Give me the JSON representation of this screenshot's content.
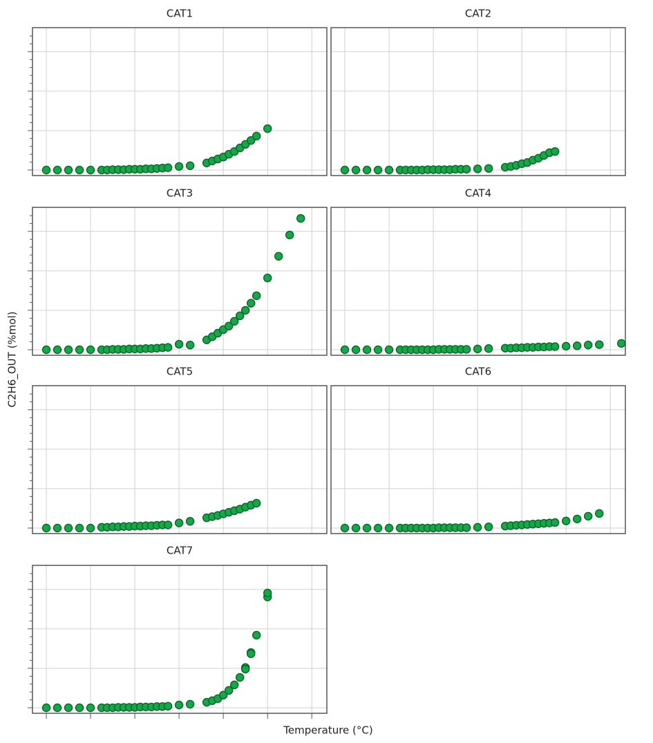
{
  "x_label": "Temperature (°C)",
  "y_label": "C2H6_OUT (%mol)",
  "chart_data": [
    {
      "type": "scatter",
      "title": "CAT1",
      "color": "#19a64a",
      "xlim": [
        -0.3125,
        6.34
      ],
      "ylim": [
        -0.14,
        3.61
      ],
      "xticks": [
        0,
        1,
        2,
        3,
        4,
        5,
        6
      ],
      "yticks": [
        0,
        1,
        2,
        3
      ],
      "yticks_minor": [
        0.2,
        0.4,
        0.6,
        0.8,
        1.2,
        1.4,
        1.6,
        1.8,
        2.2,
        2.4,
        2.6,
        2.8,
        3.2,
        3.4
      ],
      "grid": true,
      "x": [
        0,
        0.25,
        0.5,
        0.75,
        1,
        1.25,
        1.375,
        1.5,
        1.625,
        1.75,
        1.875,
        2,
        2.125,
        2.25,
        2.375,
        2.5,
        2.625,
        2.75,
        3,
        3.25,
        3.625,
        3.75,
        3.875,
        4,
        4.125,
        4.25,
        4.375,
        4.5,
        4.625,
        4.75,
        5
      ],
      "values": [
        0,
        0,
        0,
        0,
        0,
        0,
        0,
        0.01,
        0.01,
        0.01,
        0.02,
        0.02,
        0.02,
        0.03,
        0.03,
        0.04,
        0.05,
        0.06,
        0.09,
        0.11,
        0.18,
        0.23,
        0.28,
        0.33,
        0.4,
        0.47,
        0.56,
        0.65,
        0.75,
        0.86,
        1.05
      ]
    },
    {
      "type": "scatter",
      "title": "CAT2",
      "color": "#19a64a",
      "xlim": [
        -0.3125,
        6.34
      ],
      "ylim": [
        -0.14,
        3.61
      ],
      "xticks": [
        0,
        1,
        2,
        3,
        4,
        5,
        6
      ],
      "yticks": [
        0,
        1,
        2,
        3
      ],
      "grid": true,
      "x": [
        0,
        0.25,
        0.5,
        0.75,
        1,
        1.25,
        1.375,
        1.5,
        1.625,
        1.75,
        1.875,
        2,
        2.125,
        2.25,
        2.375,
        2.5,
        2.625,
        2.75,
        3,
        3.25,
        3.625,
        3.75,
        3.875,
        4,
        4.125,
        4.25,
        4.375,
        4.5,
        4.625,
        4.75
      ],
      "values": [
        0,
        0,
        0,
        0,
        0,
        0,
        0,
        0,
        0,
        0,
        0.01,
        0.01,
        0.01,
        0.01,
        0.01,
        0.02,
        0.02,
        0.02,
        0.03,
        0.04,
        0.07,
        0.09,
        0.12,
        0.16,
        0.19,
        0.25,
        0.3,
        0.37,
        0.44,
        0.47
      ]
    },
    {
      "type": "scatter",
      "title": "CAT3",
      "color": "#19a64a",
      "xlim": [
        -0.3125,
        6.34
      ],
      "ylim": [
        -0.14,
        3.61
      ],
      "xticks": [
        0,
        1,
        2,
        3,
        4,
        5,
        6
      ],
      "yticks": [
        0,
        1,
        2,
        3
      ],
      "yticks_minor": [
        0.2,
        0.4,
        0.6,
        0.8,
        1.2,
        1.4,
        1.6,
        1.8,
        2.2,
        2.4,
        2.6,
        2.8,
        3.2,
        3.4
      ],
      "grid": true,
      "x": [
        0,
        0.25,
        0.5,
        0.75,
        1,
        1.25,
        1.375,
        1.5,
        1.625,
        1.75,
        1.875,
        2,
        2.125,
        2.25,
        2.375,
        2.5,
        2.625,
        2.75,
        3,
        3.25,
        3.625,
        3.75,
        3.875,
        4,
        4.125,
        4.25,
        4.375,
        4.5,
        4.625,
        4.75,
        5,
        5.25,
        5.5,
        5.75
      ],
      "values": [
        0,
        0,
        0,
        0,
        0,
        0,
        0,
        0.01,
        0.01,
        0.01,
        0.02,
        0.02,
        0.02,
        0.03,
        0.03,
        0.04,
        0.05,
        0.06,
        0.14,
        0.12,
        0.25,
        0.33,
        0.42,
        0.51,
        0.6,
        0.72,
        0.86,
        1.0,
        1.18,
        1.37,
        1.82,
        2.37,
        2.91,
        3.33
      ]
    },
    {
      "type": "scatter",
      "title": "CAT4",
      "color": "#19a64a",
      "xlim": [
        -0.3125,
        6.34
      ],
      "ylim": [
        -0.14,
        3.61
      ],
      "xticks": [
        0,
        1,
        2,
        3,
        4,
        5,
        6
      ],
      "yticks": [
        0,
        1,
        2,
        3
      ],
      "grid": true,
      "x": [
        0,
        0.25,
        0.5,
        0.75,
        1,
        1.25,
        1.375,
        1.5,
        1.625,
        1.75,
        1.875,
        2,
        2.125,
        2.25,
        2.375,
        2.5,
        2.625,
        2.75,
        3,
        3.25,
        3.625,
        3.75,
        3.875,
        4,
        4.125,
        4.25,
        4.375,
        4.5,
        4.625,
        4.75,
        5,
        5.25,
        5.5,
        5.75,
        6.25
      ],
      "values": [
        0,
        0,
        0,
        0,
        0,
        0,
        0,
        0,
        0,
        0,
        0,
        0,
        0.01,
        0.01,
        0.01,
        0.01,
        0.01,
        0.01,
        0.02,
        0.03,
        0.04,
        0.04,
        0.05,
        0.05,
        0.06,
        0.06,
        0.07,
        0.07,
        0.08,
        0.08,
        0.09,
        0.1,
        0.12,
        0.13,
        0.16
      ]
    },
    {
      "type": "scatter",
      "title": "CAT5",
      "color": "#19a64a",
      "xlim": [
        -0.3125,
        6.34
      ],
      "ylim": [
        -0.14,
        3.61
      ],
      "xticks": [
        0,
        1,
        2,
        3,
        4,
        5,
        6
      ],
      "yticks": [
        0,
        1,
        2,
        3
      ],
      "yticks_minor": [
        0.2,
        0.4,
        0.6,
        0.8,
        1.2,
        1.4,
        1.6,
        1.8,
        2.2,
        2.4,
        2.6,
        2.8,
        3.2,
        3.4
      ],
      "grid": true,
      "x": [
        0,
        0.25,
        0.5,
        0.75,
        1,
        1.25,
        1.375,
        1.5,
        1.625,
        1.75,
        1.875,
        2,
        2.125,
        2.25,
        2.375,
        2.5,
        2.625,
        2.75,
        3,
        3.25,
        3.625,
        3.75,
        3.875,
        4,
        4.125,
        4.25,
        4.375,
        4.5,
        4.625,
        4.75
      ],
      "values": [
        0,
        0,
        0,
        0,
        0,
        0.02,
        0.02,
        0.03,
        0.03,
        0.04,
        0.04,
        0.05,
        0.05,
        0.06,
        0.06,
        0.07,
        0.08,
        0.08,
        0.13,
        0.17,
        0.26,
        0.29,
        0.32,
        0.36,
        0.4,
        0.44,
        0.48,
        0.53,
        0.58,
        0.63
      ]
    },
    {
      "type": "scatter",
      "title": "CAT6",
      "color": "#19a64a",
      "xlim": [
        -0.3125,
        6.34
      ],
      "ylim": [
        -0.14,
        3.61
      ],
      "xticks": [
        0,
        1,
        2,
        3,
        4,
        5,
        6
      ],
      "yticks": [
        0,
        1,
        2,
        3
      ],
      "grid": true,
      "x": [
        0,
        0.25,
        0.5,
        0.75,
        1,
        1.25,
        1.375,
        1.5,
        1.625,
        1.75,
        1.875,
        2,
        2.125,
        2.25,
        2.375,
        2.5,
        2.625,
        2.75,
        3,
        3.25,
        3.625,
        3.75,
        3.875,
        4,
        4.125,
        4.25,
        4.375,
        4.5,
        4.625,
        4.75,
        5,
        5.25,
        5.5,
        5.75
      ],
      "values": [
        0,
        0,
        0,
        0,
        0,
        0,
        0,
        0,
        0,
        0,
        0,
        0,
        0.01,
        0.01,
        0.01,
        0.01,
        0.01,
        0.01,
        0.02,
        0.03,
        0.05,
        0.06,
        0.07,
        0.08,
        0.09,
        0.1,
        0.11,
        0.12,
        0.13,
        0.14,
        0.18,
        0.23,
        0.3,
        0.37
      ]
    },
    {
      "type": "scatter",
      "title": "CAT7",
      "color": "#19a64a",
      "xlim": [
        -0.3125,
        6.34
      ],
      "ylim": [
        -0.14,
        3.61
      ],
      "xticks": [
        0,
        1,
        2,
        3,
        4,
        5,
        6
      ],
      "yticks": [
        0,
        1,
        2,
        3
      ],
      "yticks_minor": [
        0.2,
        0.4,
        0.6,
        0.8,
        1.2,
        1.4,
        1.6,
        1.8,
        2.2,
        2.4,
        2.6,
        2.8,
        3.2,
        3.4
      ],
      "grid": true,
      "show_xticks": true,
      "x": [
        0,
        0.25,
        0.5,
        0.75,
        1,
        1.25,
        1.375,
        1.5,
        1.625,
        1.75,
        1.875,
        2,
        2.125,
        2.25,
        2.375,
        2.5,
        2.625,
        2.75,
        3,
        3.25,
        3.625,
        3.75,
        3.875,
        4,
        4.125,
        4.25,
        4.375,
        4.5,
        4.5,
        4.625,
        4.625,
        4.75,
        5,
        5
      ],
      "values": [
        0,
        0,
        0,
        0,
        0,
        0,
        0,
        0,
        0.01,
        0.01,
        0.01,
        0.01,
        0.02,
        0.02,
        0.02,
        0.03,
        0.03,
        0.04,
        0.07,
        0.09,
        0.14,
        0.18,
        0.23,
        0.32,
        0.44,
        0.58,
        0.77,
        1.02,
        0.98,
        1.4,
        1.37,
        1.84,
        2.81,
        2.91
      ]
    }
  ]
}
